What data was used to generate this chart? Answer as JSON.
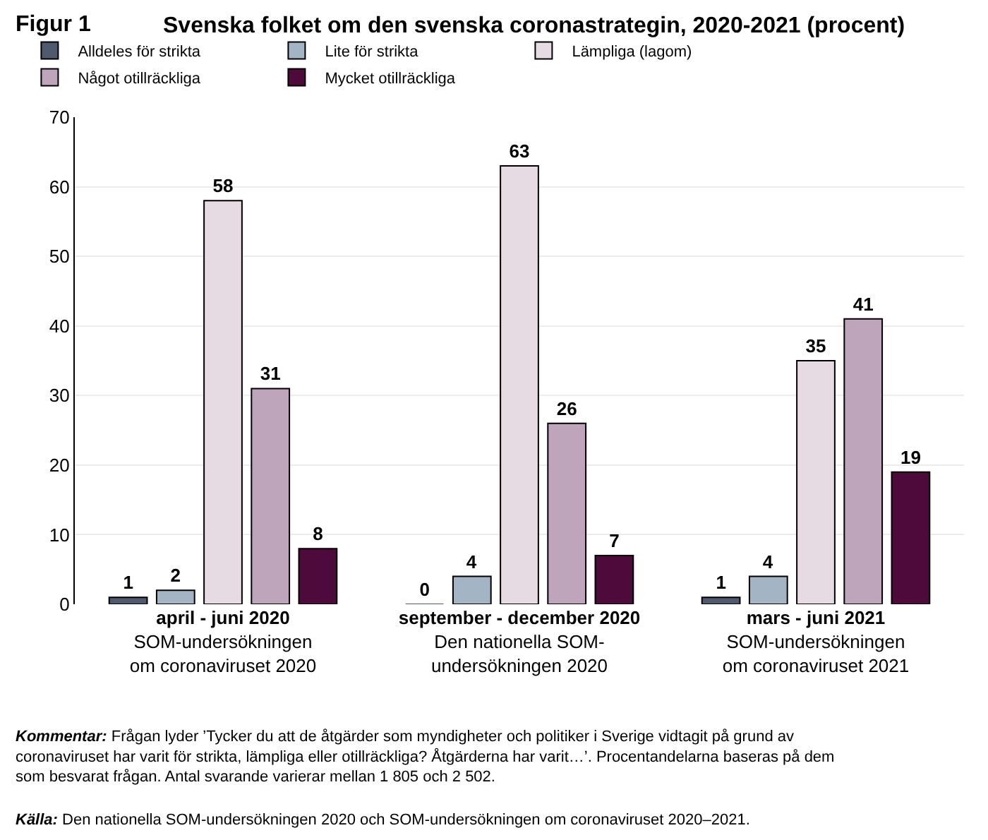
{
  "chart_data": {
    "type": "bar",
    "title": "Svenska folket om den svenska coronastrategin, 2020-2021 (procent)",
    "categories": [
      "april - juni 2020\nSOM-undersökningen\nom coronaviruset 2020",
      "september - december 2020\nDen nationella SOM-\nundersökningen 2020",
      "mars - juni 2021\nSOM-undersökningen\nom coronaviruset 2021"
    ],
    "series": [
      {
        "name": "Alldeles för strikta",
        "color": "#4f5a6e",
        "values": [
          1,
          0,
          1
        ]
      },
      {
        "name": "Lite för strikta",
        "color": "#a3b4c4",
        "values": [
          2,
          4,
          4
        ]
      },
      {
        "name": "Lämpliga (lagom)",
        "color": "#e6dbe3",
        "values": [
          58,
          63,
          35
        ]
      },
      {
        "name": "Något otillräckliga",
        "color": "#bfa5bc",
        "values": [
          31,
          26,
          41
        ]
      },
      {
        "name": "Mycket otillräckliga",
        "color": "#4d0a3a",
        "values": [
          8,
          7,
          19
        ]
      }
    ],
    "ylim": [
      0,
      70
    ],
    "yticks": [
      0,
      10,
      20,
      30,
      40,
      50,
      60,
      70
    ],
    "grid": "y",
    "legend": "top",
    "data_labels": true,
    "annotations": [
      "Figur 1",
      "Kommentar: Frågan lyder ’Tycker du att de åtgärder som myndigheter och politiker i Sverige vidtagit på grund av\ncoronaviruset har varit för strikta, lämpliga eller otillräckliga? Åtgärderna har varit…’. Procentandelarna baseras på dem\nsom besvarat frågan. Antal svarande varierar mellan 1 805 och 2 502.",
      "Källa: Den nationella SOM-undersökningen 2020 och SOM-undersökningen om coronaviruset 2020–2021."
    ]
  }
}
